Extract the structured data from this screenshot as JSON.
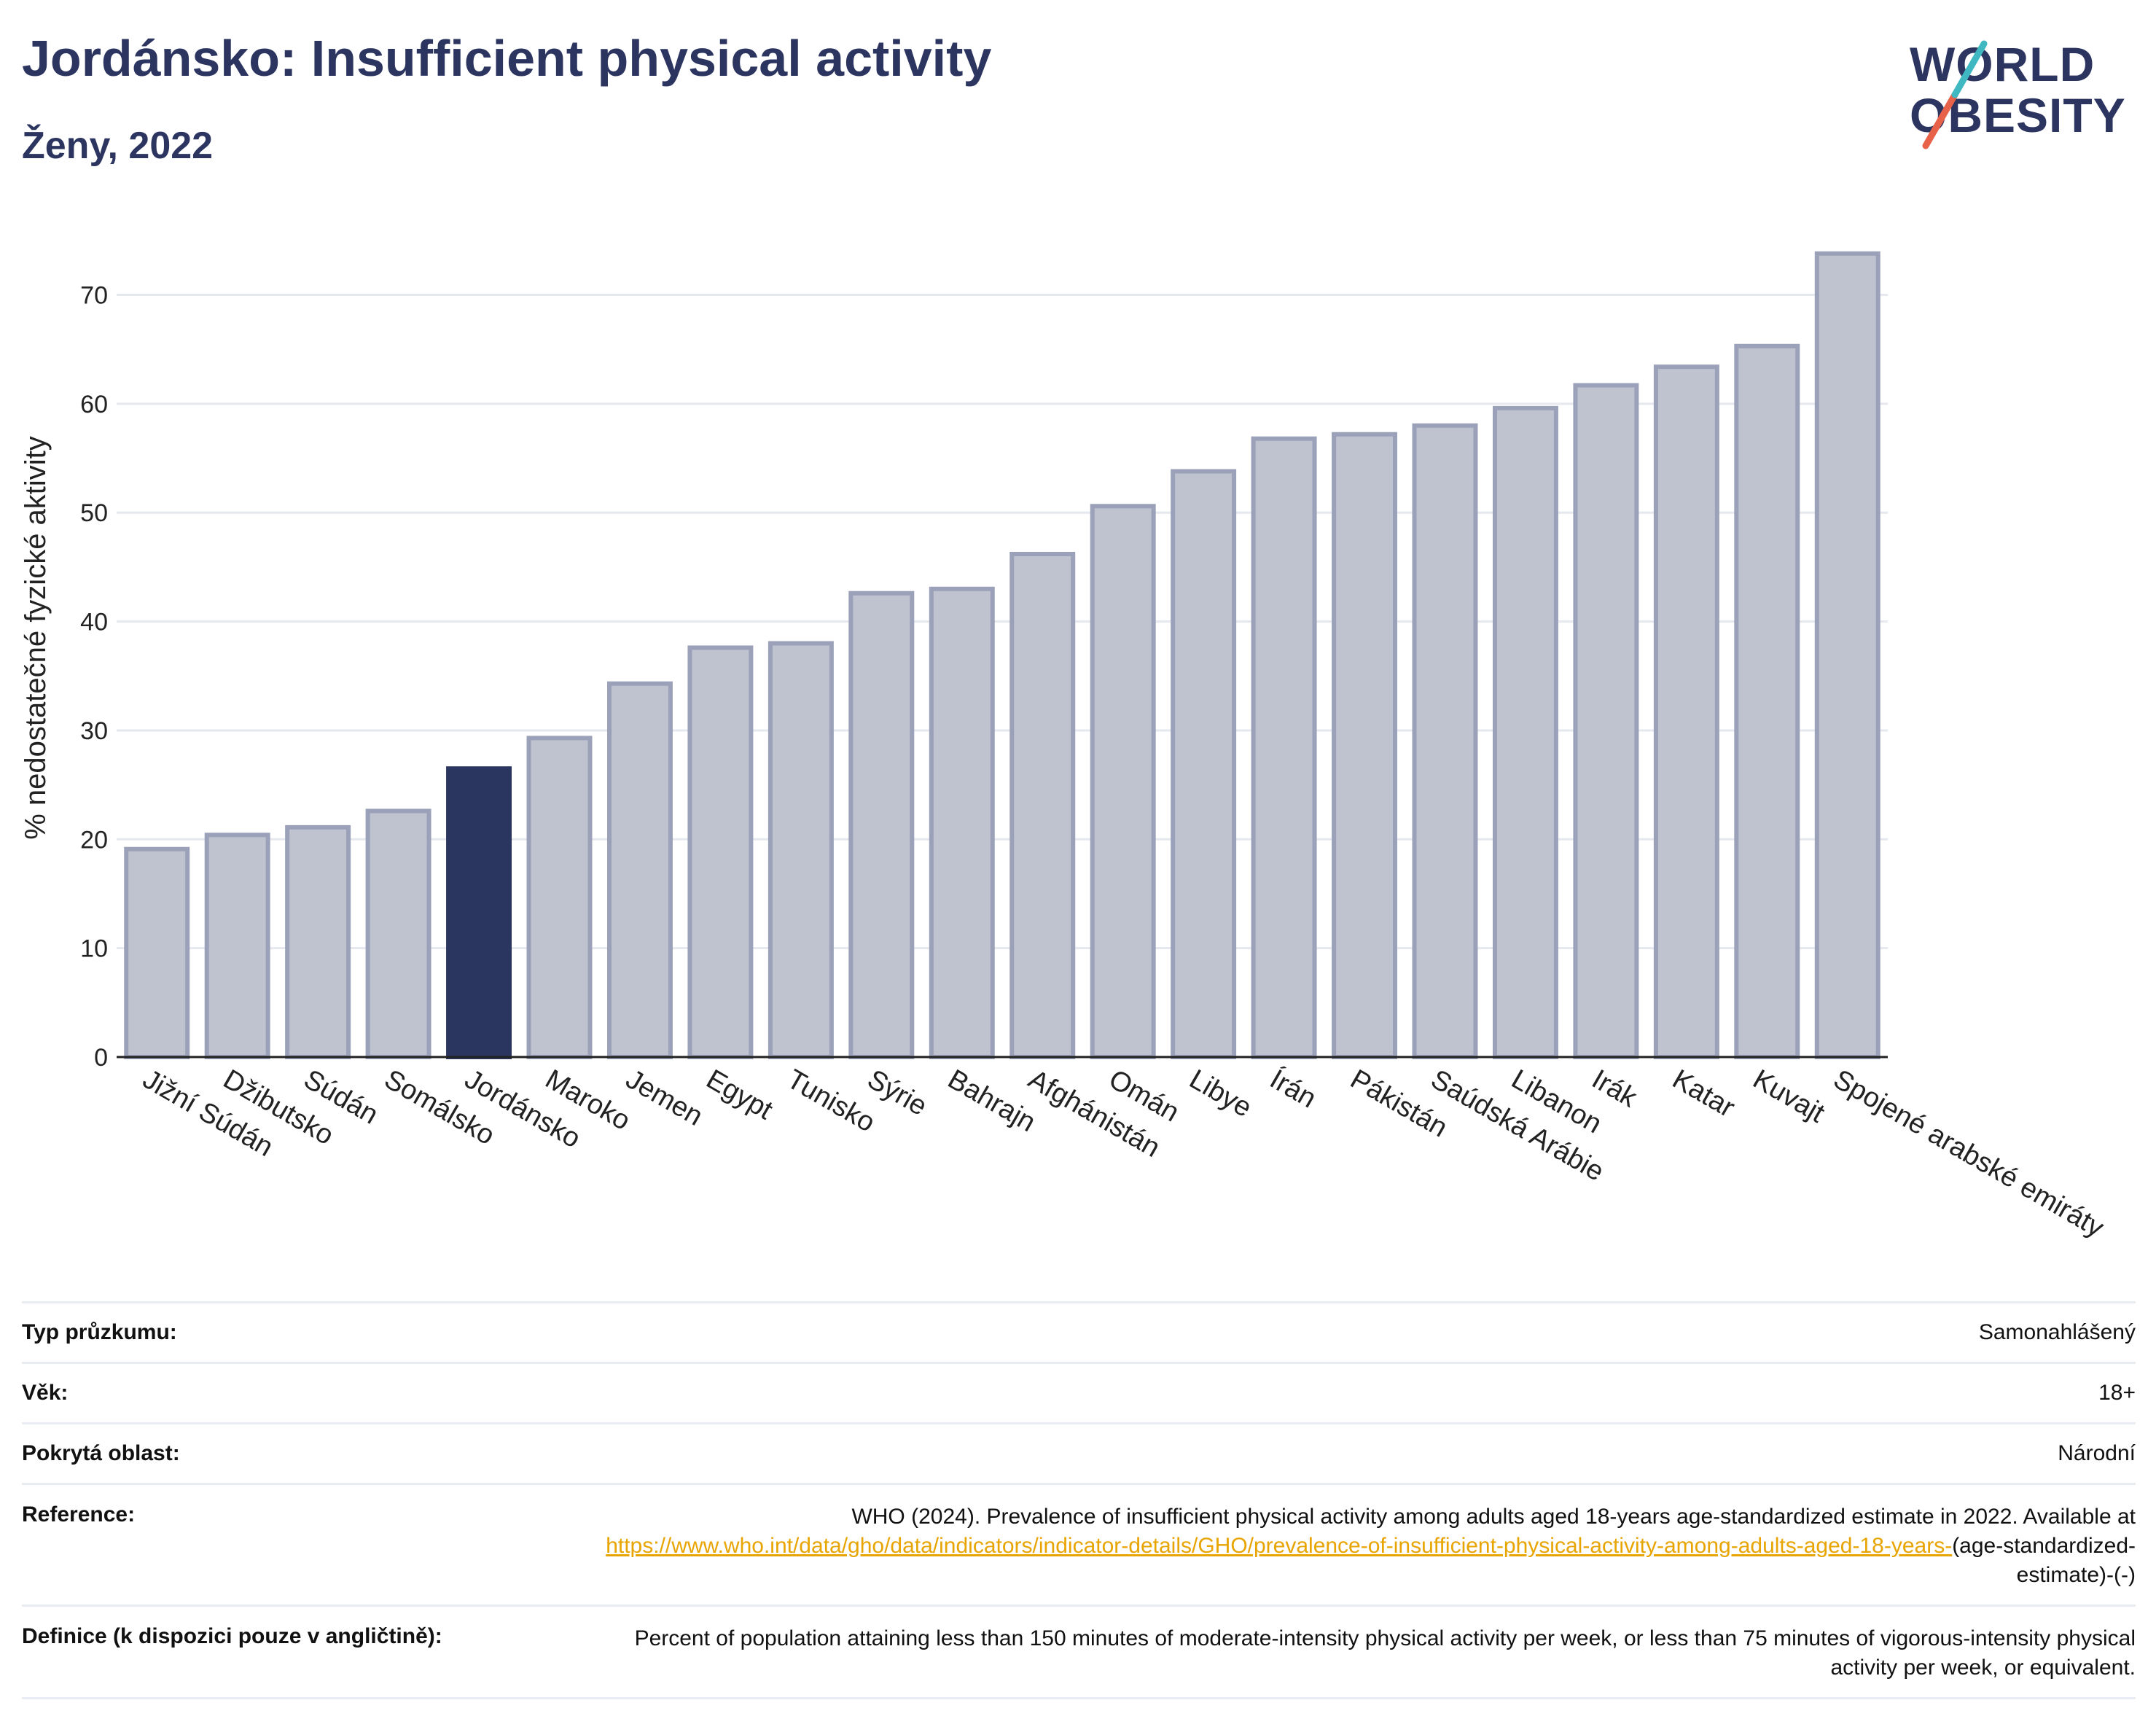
{
  "header": {
    "title": "Jordánsko: Insufficient physical activity",
    "subtitle": "Ženy, 2022"
  },
  "logo": {
    "line1": "WORLD",
    "line2": "OBESITY",
    "slash_colors": [
      "#e8624a",
      "#3fb8c1"
    ]
  },
  "colors": {
    "highlight": "#2b3660",
    "bar": "#bfc3d0",
    "bar_border": "#9aa1b8",
    "grid": "#e6e8ef",
    "text_dark": "#2c3560"
  },
  "chart_data": {
    "type": "bar",
    "ylabel": "% nedostatečné fyzické aktivity",
    "xlabel": "",
    "ylim": [
      0,
      77
    ],
    "yticks": [
      0,
      10,
      20,
      30,
      40,
      50,
      60,
      70
    ],
    "grid": true,
    "highlight_category": "Jordánsko",
    "categories": [
      "Jižní Súdán",
      "Džibutsko",
      "Súdán",
      "Somálsko",
      "Jordánsko",
      "Maroko",
      "Jemen",
      "Egypt",
      "Tunisko",
      "Sýrie",
      "Bahrajn",
      "Afghánistán",
      "Omán",
      "Libye",
      "Írán",
      "Pákistán",
      "Saúdská Arábie",
      "Libanon",
      "Irák",
      "Katar",
      "Kuvajt",
      "Spojené arabské emiráty"
    ],
    "values": [
      19.1,
      20.4,
      21.1,
      22.6,
      26.5,
      29.3,
      34.3,
      37.6,
      38.0,
      42.6,
      43.0,
      46.2,
      50.6,
      53.8,
      56.8,
      57.2,
      58.0,
      59.6,
      61.7,
      63.4,
      65.3,
      73.8
    ]
  },
  "meta": {
    "survey_label": "Typ průzkumu:",
    "survey_value": "Samonahlášený",
    "age_label": "Věk:",
    "age_value": "18+",
    "coverage_label": "Pokrytá oblast:",
    "coverage_value": "Národní",
    "reference_label": "Reference:",
    "reference_text": "WHO (2024). Prevalence of insufficient physical activity among adults aged 18-years age-standardized estimate in 2022. Available at",
    "reference_link": "https://www.who.int/data/gho/data/indicators/indicator-details/GHO/prevalence-of-insufficient-physical-activity-among-adults-aged-18-years-",
    "reference_suffix": "(age-standardized-estimate)-(-)",
    "definition_label": "Definice (k dispozici pouze v angličtině):",
    "definition_text": "Percent of population attaining less than 150 minutes of moderate-intensity physical activity per week, or less than 75 minutes of vigorous-intensity physical activity per week, or equivalent."
  }
}
